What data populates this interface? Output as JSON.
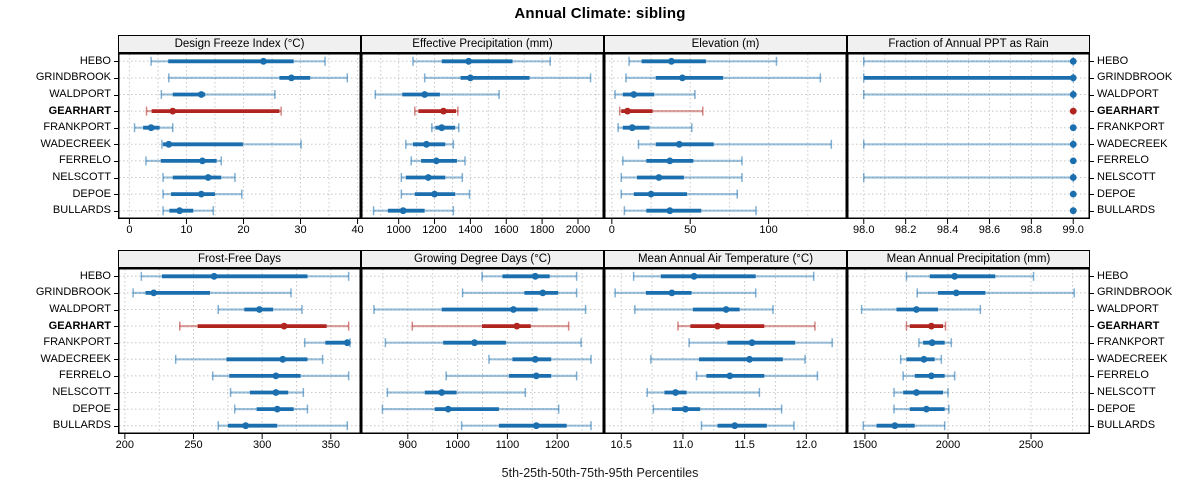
{
  "title": "Annual Climate: sibling",
  "footer_label": "5th-25th-50th-75th-95th Percentiles",
  "sites": [
    "HEBO",
    "GRINDBROOK",
    "WALDPORT",
    "GEARHART",
    "FRANKPORT",
    "WADECREEK",
    "FERRELO",
    "NELSCOTT",
    "DEPOE",
    "BULLARDS"
  ],
  "highlight_site": "GEARHART",
  "colors": {
    "series": "#1b6fae",
    "highlight": "#b02520",
    "strip_bg": "#f0f0f0",
    "grid": "#c8c8c8",
    "border": "#000000"
  },
  "chart_data": {
    "type": "horizontal-errorbar-dotplot",
    "percentiles": [
      "5th",
      "25th",
      "50th",
      "75th",
      "95th"
    ],
    "categories": [
      "HEBO",
      "GRINDBROOK",
      "WALDPORT",
      "GEARHART",
      "FRANKPORT",
      "WADECREEK",
      "FERRELO",
      "NELSCOTT",
      "DEPOE",
      "BULLARDS"
    ],
    "highlight_category": "GEARHART",
    "grid": "dotted",
    "legend": "none",
    "panels": [
      {
        "title": "Design Freeze Index (°C)",
        "row": 0,
        "xlim": [
          -2,
          40.6
        ],
        "ticks": [
          0,
          10,
          20,
          30,
          40
        ],
        "tick_labels": [
          "0",
          "10",
          "20",
          "30",
          "40"
        ],
        "series": [
          {
            "name": "HEBO",
            "values": [
              3.8,
              6.8,
              23.5,
              28.8,
              34.3
            ]
          },
          {
            "name": "GRINDBROOK",
            "values": [
              6.9,
              26.3,
              28.4,
              31.7,
              38.2
            ]
          },
          {
            "name": "WALDPORT",
            "values": [
              5.6,
              7.6,
              12.6,
              13.3,
              25.5
            ]
          },
          {
            "name": "GEARHART",
            "values": [
              3.0,
              3.9,
              7.6,
              26.3,
              26.6
            ]
          },
          {
            "name": "FRANKPORT",
            "values": [
              0.9,
              2.4,
              3.8,
              5.3,
              7.6
            ]
          },
          {
            "name": "WADECREEK",
            "values": [
              5.7,
              5.9,
              6.9,
              19.9,
              30.1
            ]
          },
          {
            "name": "FERRELO",
            "values": [
              2.9,
              5.5,
              12.8,
              15.3,
              16.1
            ]
          },
          {
            "name": "NELSCOTT",
            "values": [
              5.9,
              7.6,
              13.8,
              16.1,
              18.5
            ]
          },
          {
            "name": "DEPOE",
            "values": [
              5.9,
              7.3,
              12.6,
              15.0,
              19.7
            ]
          },
          {
            "name": "BULLARDS",
            "values": [
              5.9,
              7.0,
              8.8,
              11.2,
              14.7
            ]
          }
        ]
      },
      {
        "title": "Effective Precipitation (mm)",
        "row": 0,
        "xlim": [
          790,
          2145
        ],
        "ticks": [
          1000,
          1200,
          1400,
          1600,
          1800,
          2000
        ],
        "tick_labels": [
          "1000",
          "1200",
          "1400",
          "1600",
          "1800",
          "2000"
        ],
        "series": [
          {
            "name": "HEBO",
            "values": [
              1080,
              1240,
              1390,
              1635,
              1845
            ]
          },
          {
            "name": "GRINDBROOK",
            "values": [
              1145,
              1345,
              1400,
              1730,
              2070
            ]
          },
          {
            "name": "WALDPORT",
            "values": [
              870,
              1020,
              1145,
              1230,
              1560
            ]
          },
          {
            "name": "GEARHART",
            "values": [
              1090,
              1110,
              1250,
              1320,
              1330
            ]
          },
          {
            "name": "FRANKPORT",
            "values": [
              1185,
              1205,
              1240,
              1315,
              1335
            ]
          },
          {
            "name": "WADECREEK",
            "values": [
              1040,
              1080,
              1155,
              1260,
              1305
            ]
          },
          {
            "name": "FERRELO",
            "values": [
              1070,
              1125,
              1210,
              1325,
              1370
            ]
          },
          {
            "name": "NELSCOTT",
            "values": [
              1015,
              1040,
              1165,
              1260,
              1355
            ]
          },
          {
            "name": "DEPOE",
            "values": [
              1015,
              1090,
              1200,
              1315,
              1395
            ]
          },
          {
            "name": "BULLARDS",
            "values": [
              860,
              940,
              1025,
              1145,
              1305
            ]
          }
        ]
      },
      {
        "title": "Elevation (m)",
        "row": 0,
        "xlim": [
          -5,
          150
        ],
        "ticks": [
          0,
          50,
          100
        ],
        "tick_labels": [
          "0",
          "50",
          "100"
        ],
        "series": [
          {
            "name": "HEBO",
            "values": [
              11,
              19,
              38,
              60,
              105
            ]
          },
          {
            "name": "GRINDBROOK",
            "values": [
              9,
              28,
              45,
              71,
              133
            ]
          },
          {
            "name": "WALDPORT",
            "values": [
              2,
              7,
              14,
              27,
              53
            ]
          },
          {
            "name": "GEARHART",
            "values": [
              5,
              6,
              10,
              26,
              58
            ]
          },
          {
            "name": "FRANKPORT",
            "values": [
              4,
              7,
              13,
              24,
              51
            ]
          },
          {
            "name": "WADECREEK",
            "values": [
              17,
              28,
              43,
              65,
              140
            ]
          },
          {
            "name": "FERRELO",
            "values": [
              7,
              22,
              37,
              52,
              83
            ]
          },
          {
            "name": "NELSCOTT",
            "values": [
              6,
              16,
              30,
              46,
              83
            ]
          },
          {
            "name": "DEPOE",
            "values": [
              6,
              14,
              25,
              48,
              80
            ]
          },
          {
            "name": "BULLARDS",
            "values": [
              8,
              22,
              37,
              57,
              92
            ]
          }
        ]
      },
      {
        "title": "Fraction of Annual PPT as Rain",
        "row": 0,
        "xlim": [
          97.92,
          99.08
        ],
        "ticks": [
          98.0,
          98.2,
          98.4,
          98.6,
          98.8,
          99.0
        ],
        "tick_labels": [
          "98.0",
          "98.2",
          "98.4",
          "98.6",
          "98.8",
          "99.0"
        ],
        "series": [
          {
            "name": "HEBO",
            "values": [
              98,
              99,
              99,
              99,
              99
            ]
          },
          {
            "name": "GRINDBROOK",
            "values": [
              98,
              98,
              99,
              99,
              99
            ]
          },
          {
            "name": "WALDPORT",
            "values": [
              98,
              99,
              99,
              99,
              99
            ]
          },
          {
            "name": "GEARHART",
            "values": [
              99,
              99,
              99,
              99,
              99
            ]
          },
          {
            "name": "FRANKPORT",
            "values": [
              99,
              99,
              99,
              99,
              99
            ]
          },
          {
            "name": "WADECREEK",
            "values": [
              98,
              99,
              99,
              99,
              99
            ]
          },
          {
            "name": "FERRELO",
            "values": [
              99,
              99,
              99,
              99,
              99
            ]
          },
          {
            "name": "NELSCOTT",
            "values": [
              98,
              99,
              99,
              99,
              99
            ]
          },
          {
            "name": "DEPOE",
            "values": [
              99,
              99,
              99,
              99,
              99
            ]
          },
          {
            "name": "BULLARDS",
            "values": [
              99,
              99,
              99,
              99,
              99
            ]
          }
        ]
      },
      {
        "title": "Frost-Free Days",
        "row": 1,
        "xlim": [
          195,
          372
        ],
        "ticks": [
          200,
          250,
          300,
          350
        ],
        "tick_labels": [
          "200",
          "250",
          "300",
          "350"
        ],
        "series": [
          {
            "name": "HEBO",
            "values": [
              212,
              227,
              265,
              333,
              363
            ]
          },
          {
            "name": "GRINDBROOK",
            "values": [
              206,
              215,
              221,
              262,
              321
            ]
          },
          {
            "name": "WALDPORT",
            "values": [
              268,
              287,
              298,
              308,
              329
            ]
          },
          {
            "name": "GEARHART",
            "values": [
              240,
              253,
              316,
              347,
              363
            ]
          },
          {
            "name": "FRANKPORT",
            "values": [
              331,
              346,
              362,
              363,
              364
            ]
          },
          {
            "name": "WADECREEK",
            "values": [
              237,
              274,
              315,
              333,
              344
            ]
          },
          {
            "name": "FERRELO",
            "values": [
              264,
              276,
              310,
              328,
              363
            ]
          },
          {
            "name": "NELSCOTT",
            "values": [
              277,
              291,
              310,
              319,
              330
            ]
          },
          {
            "name": "DEPOE",
            "values": [
              280,
              296,
              311,
              323,
              333
            ]
          },
          {
            "name": "BULLARDS",
            "values": [
              268,
              275,
              288,
              311,
              362
            ]
          }
        ]
      },
      {
        "title": "Growing Degree Days (°C)",
        "row": 1,
        "xlim": [
          806,
          1294
        ],
        "ticks": [
          900,
          1000,
          1100,
          1200
        ],
        "tick_labels": [
          "900",
          "1000",
          "1100",
          "1200"
        ],
        "series": [
          {
            "name": "HEBO",
            "values": [
              1049,
              1090,
              1156,
              1185,
              1239
            ]
          },
          {
            "name": "GRINDBROOK",
            "values": [
              1010,
              1134,
              1171,
              1202,
              1239
            ]
          },
          {
            "name": "WALDPORT",
            "values": [
              832,
              968,
              1112,
              1161,
              1257
            ]
          },
          {
            "name": "GEARHART",
            "values": [
              909,
              1049,
              1119,
              1147,
              1223
            ]
          },
          {
            "name": "FRANKPORT",
            "values": [
              855,
              971,
              1034,
              1097,
              1248
            ]
          },
          {
            "name": "WADECREEK",
            "values": [
              1063,
              1110,
              1156,
              1188,
              1268
            ]
          },
          {
            "name": "FERRELO",
            "values": [
              977,
              1103,
              1158,
              1188,
              1239
            ]
          },
          {
            "name": "NELSCOTT",
            "values": [
              859,
              934,
              968,
              998,
              1136
            ]
          },
          {
            "name": "DEPOE",
            "values": [
              849,
              954,
              981,
              1083,
              1203
            ]
          },
          {
            "name": "BULLARDS",
            "values": [
              1008,
              1083,
              1158,
              1219,
              1268
            ]
          }
        ]
      },
      {
        "title": "Mean Annual Air Temperature (°C)",
        "row": 1,
        "xlim": [
          10.36,
          12.33
        ],
        "ticks": [
          10.5,
          11.0,
          11.5,
          12.0
        ],
        "tick_labels": [
          "10.5",
          "11.0",
          "11.5",
          "12.0"
        ],
        "series": [
          {
            "name": "HEBO",
            "values": [
              10.6,
              10.82,
              11.09,
              11.59,
              12.06
            ]
          },
          {
            "name": "GRINDBROOK",
            "values": [
              10.45,
              10.7,
              10.91,
              11.07,
              11.59
            ]
          },
          {
            "name": "WALDPORT",
            "values": [
              10.61,
              11.08,
              11.35,
              11.46,
              11.73
            ]
          },
          {
            "name": "GEARHART",
            "values": [
              10.96,
              11.06,
              11.28,
              11.66,
              12.07
            ]
          },
          {
            "name": "FRANKPORT",
            "values": [
              11.05,
              11.36,
              11.56,
              11.91,
              12.21
            ]
          },
          {
            "name": "WADECREEK",
            "values": [
              10.74,
              11.13,
              11.54,
              11.81,
              11.99
            ]
          },
          {
            "name": "FERRELO",
            "values": [
              11.11,
              11.19,
              11.38,
              11.66,
              12.09
            ]
          },
          {
            "name": "NELSCOTT",
            "values": [
              10.71,
              10.85,
              10.94,
              11.03,
              11.62
            ]
          },
          {
            "name": "DEPOE",
            "values": [
              10.76,
              10.91,
              11.02,
              11.14,
              11.8
            ]
          },
          {
            "name": "BULLARDS",
            "values": [
              11.15,
              11.28,
              11.42,
              11.68,
              11.9
            ]
          }
        ]
      },
      {
        "title": "Mean Annual Precipitation (mm)",
        "row": 1,
        "xlim": [
          1392,
          2855
        ],
        "ticks": [
          1500,
          2000,
          2500
        ],
        "tick_labels": [
          "1500",
          "2000",
          "2500"
        ],
        "series": [
          {
            "name": "HEBO",
            "values": [
              1750,
              1890,
              2040,
              2285,
              2515
            ]
          },
          {
            "name": "GRINDBROOK",
            "values": [
              1815,
              1940,
              2050,
              2225,
              2760
            ]
          },
          {
            "name": "WALDPORT",
            "values": [
              1480,
              1690,
              1810,
              1940,
              2195
            ]
          },
          {
            "name": "GEARHART",
            "values": [
              1750,
              1770,
              1900,
              1970,
              1985
            ]
          },
          {
            "name": "FRANKPORT",
            "values": [
              1825,
              1850,
              1905,
              1980,
              2020
            ]
          },
          {
            "name": "WADECREEK",
            "values": [
              1715,
              1750,
              1855,
              1920,
              1960
            ]
          },
          {
            "name": "FERRELO",
            "values": [
              1730,
              1800,
              1900,
              1980,
              2040
            ]
          },
          {
            "name": "NELSCOTT",
            "values": [
              1675,
              1730,
              1810,
              1970,
              2000
            ]
          },
          {
            "name": "DEPOE",
            "values": [
              1675,
              1770,
              1870,
              1980,
              2005
            ]
          },
          {
            "name": "BULLARDS",
            "values": [
              1490,
              1570,
              1680,
              1800,
              1980
            ]
          }
        ]
      }
    ]
  }
}
